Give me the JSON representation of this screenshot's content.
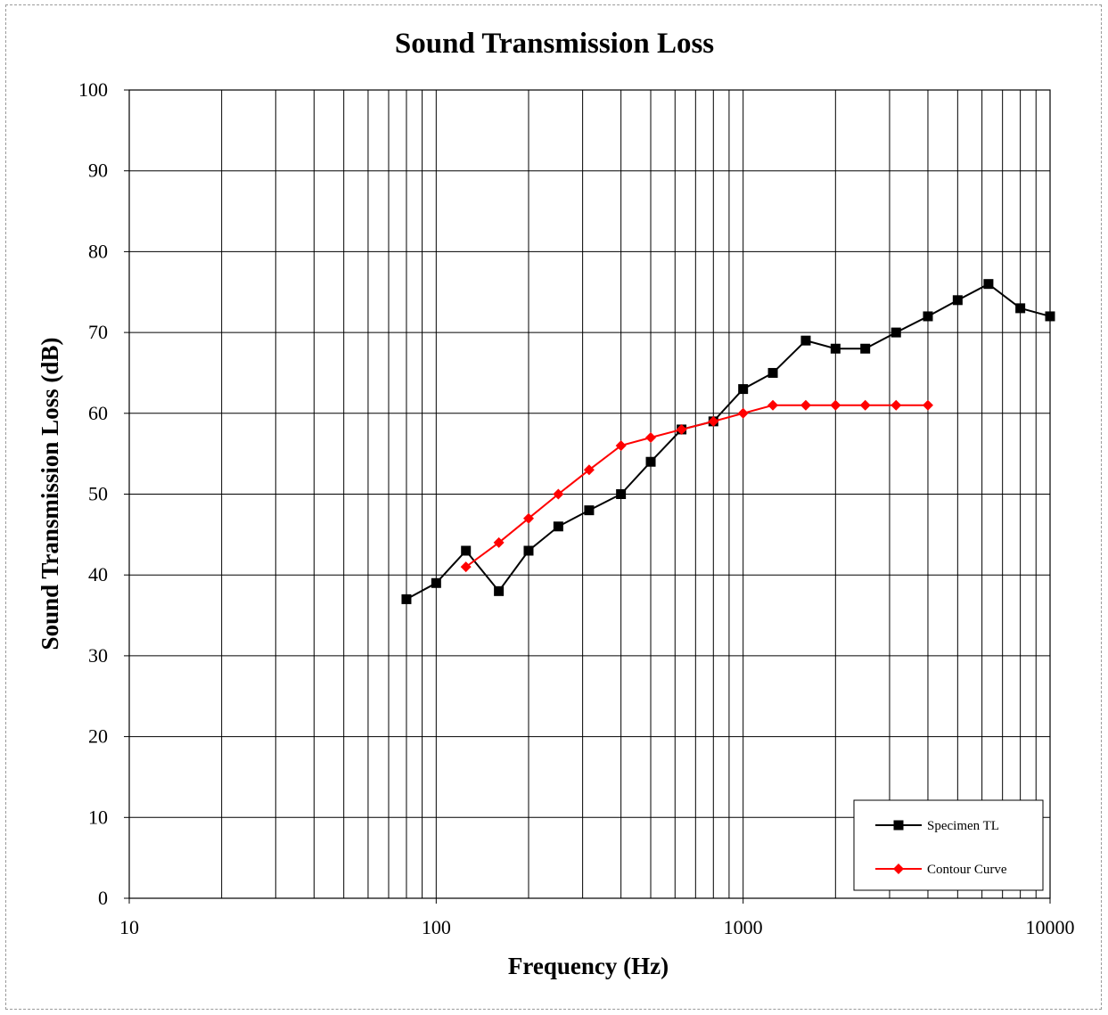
{
  "chart_data": {
    "type": "line",
    "title": "Sound Transmission Loss",
    "xlabel": "Frequency (Hz)",
    "ylabel": "Sound Transmission Loss (dB)",
    "x_scale": "log",
    "xlim": [
      10,
      10000
    ],
    "ylim": [
      0,
      100
    ],
    "x_tick_labels": [
      "10",
      "100",
      "1000",
      "10000"
    ],
    "y_tick_labels": [
      "0",
      "10",
      "20",
      "30",
      "40",
      "50",
      "60",
      "70",
      "80",
      "90",
      "100"
    ],
    "grid": true,
    "legend_position": "bottom-right",
    "series": [
      {
        "name": "Specimen TL",
        "color": "#000000",
        "marker": "square",
        "x": [
          80,
          100,
          125,
          160,
          200,
          250,
          315,
          400,
          500,
          630,
          800,
          1000,
          1250,
          1600,
          2000,
          2500,
          3150,
          4000,
          5000,
          6300,
          8000,
          10000
        ],
        "y": [
          37,
          39,
          43,
          38,
          43,
          46,
          48,
          50,
          54,
          58,
          59,
          63,
          65,
          69,
          68,
          68,
          70,
          72,
          74,
          76,
          73,
          72
        ]
      },
      {
        "name": "Contour Curve",
        "color": "#ff0000",
        "marker": "diamond",
        "x": [
          125,
          160,
          200,
          250,
          315,
          400,
          500,
          630,
          800,
          1000,
          1250,
          1600,
          2000,
          2500,
          3150,
          4000
        ],
        "y": [
          41,
          44,
          47,
          50,
          53,
          56,
          57,
          58,
          59,
          60,
          61,
          61,
          61,
          61,
          61,
          61
        ]
      }
    ]
  }
}
